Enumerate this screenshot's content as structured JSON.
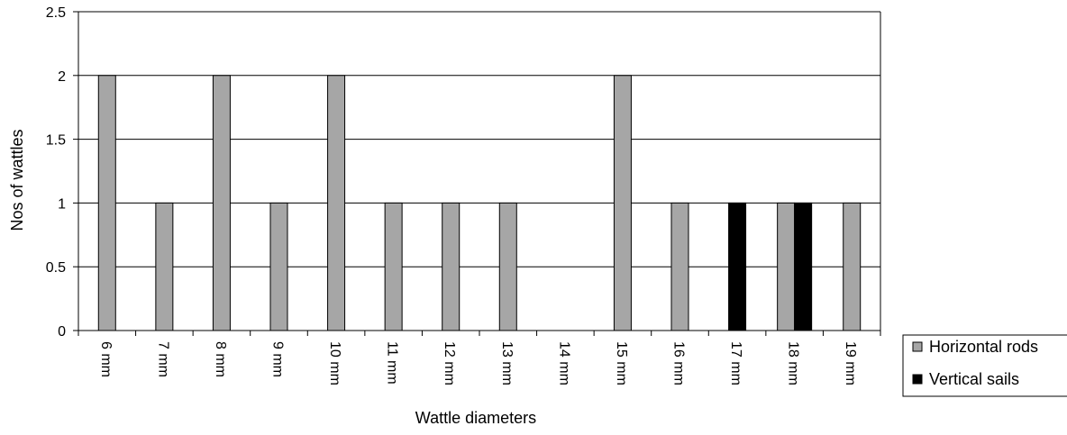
{
  "chart_data": {
    "type": "bar",
    "title": "",
    "xlabel": "Wattle diameters",
    "ylabel": "Nos of wattles",
    "categories": [
      "6 mm",
      "7 mm",
      "8 mm",
      "9 mm",
      "10 mm",
      "11 mm",
      "12 mm",
      "13 mm",
      "14 mm",
      "15 mm",
      "16 mm",
      "17 mm",
      "18 mm",
      "19 mm"
    ],
    "series": [
      {
        "name": "Horizontal rods",
        "color": "#a6a6a6",
        "values": [
          2,
          1,
          2,
          1,
          2,
          1,
          1,
          1,
          0,
          2,
          1,
          0,
          1,
          1
        ]
      },
      {
        "name": "Vertical sails",
        "color": "#000000",
        "values": [
          0,
          0,
          0,
          0,
          0,
          0,
          0,
          0,
          0,
          0,
          0,
          1,
          1,
          0
        ]
      }
    ],
    "ylim": [
      0,
      2.5
    ],
    "yticks": [
      "0",
      "0.5",
      "1",
      "1.5",
      "2",
      "2.5"
    ],
    "grid": true,
    "legend": "right"
  }
}
